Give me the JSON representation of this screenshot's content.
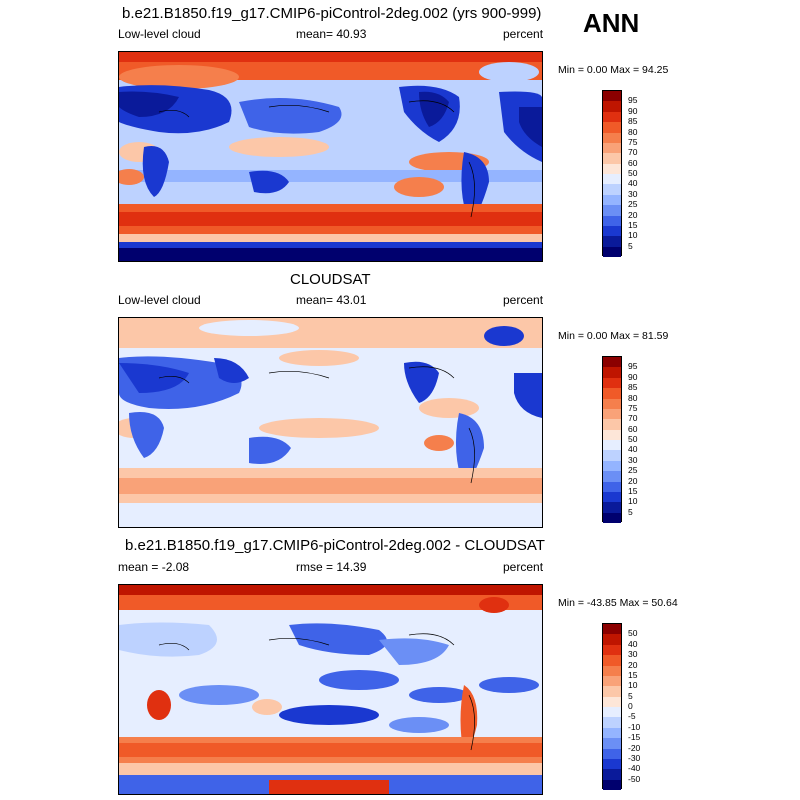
{
  "season": "ANN",
  "panels": [
    {
      "title": "b.e21.B1850.f19_g17.CMIP6-piControl-2deg.002 (yrs 900-999)",
      "left_label": "Low-level cloud",
      "center_label": "mean=  40.93",
      "right_label": "percent",
      "minmax": "Min =   0.00 Max =  94.25",
      "colorbar_labels": [
        "95",
        "90",
        "85",
        "80",
        "75",
        "70",
        "60",
        "50",
        "40",
        "30",
        "25",
        "20",
        "15",
        "10",
        "5"
      ],
      "colorbar_colors": [
        "#8b0000",
        "#bf1500",
        "#e03010",
        "#f05a28",
        "#f57f4c",
        "#f9a278",
        "#fcc7a8",
        "#fde6d8",
        "#e6eeff",
        "#bdd2ff",
        "#94b4ff",
        "#6b8ff5",
        "#3f63e8",
        "#1a38d0",
        "#0a1a9a",
        "#00006e"
      ]
    },
    {
      "title": "CLOUDSAT",
      "left_label": "Low-level cloud",
      "center_label": "mean=  43.01",
      "right_label": "percent",
      "minmax": "Min =   0.00 Max =  81.59",
      "colorbar_labels": [
        "95",
        "90",
        "85",
        "80",
        "75",
        "70",
        "60",
        "50",
        "40",
        "30",
        "25",
        "20",
        "15",
        "10",
        "5"
      ],
      "colorbar_colors": [
        "#8b0000",
        "#bf1500",
        "#e03010",
        "#f05a28",
        "#f57f4c",
        "#f9a278",
        "#fcc7a8",
        "#fde6d8",
        "#e6eeff",
        "#bdd2ff",
        "#94b4ff",
        "#6b8ff5",
        "#3f63e8",
        "#1a38d0",
        "#0a1a9a",
        "#00006e"
      ]
    },
    {
      "title": "b.e21.B1850.f19_g17.CMIP6-piControl-2deg.002 - CLOUDSAT",
      "left_label": "mean =  -2.08",
      "center_label": "rmse =  14.39",
      "right_label": "percent",
      "minmax": "Min = -43.85 Max =  50.64",
      "colorbar_labels": [
        "50",
        "40",
        "30",
        "20",
        "15",
        "10",
        "5",
        "0",
        "-5",
        "-10",
        "-15",
        "-20",
        "-30",
        "-40",
        "-50"
      ],
      "colorbar_colors": [
        "#8b0000",
        "#bf1500",
        "#e03010",
        "#f05a28",
        "#f57f4c",
        "#f9a278",
        "#fcc7a8",
        "#fde6d8",
        "#e6eeff",
        "#bdd2ff",
        "#94b4ff",
        "#6b8ff5",
        "#3f63e8",
        "#1a38d0",
        "#0a1a9a",
        "#00006e"
      ]
    }
  ]
}
